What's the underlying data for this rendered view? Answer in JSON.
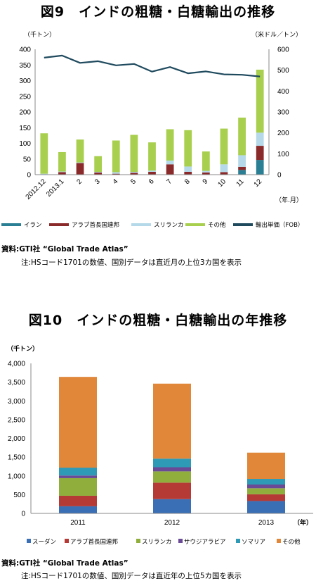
{
  "chart_data": [
    {
      "id": "fig9",
      "type": "bar",
      "stacked": true,
      "title": "図9　インドの粗糖・白糖輸出の推移",
      "left_unit": "（千トン）",
      "right_unit": "（米ドル／トン）",
      "x_unit": "（年.月）",
      "categories": [
        "2012.12",
        "2013.1",
        "2",
        "3",
        "4",
        "5",
        "6",
        "7",
        "8",
        "9",
        "10",
        "11",
        "12"
      ],
      "ylim": [
        0,
        400
      ],
      "yticks": [
        0,
        50,
        100,
        150,
        200,
        250,
        300,
        350,
        400
      ],
      "y2lim": [
        0,
        600
      ],
      "y2ticks": [
        0,
        100,
        200,
        300,
        400,
        500,
        600
      ],
      "series": [
        {
          "name": "イラン",
          "color": "#2a7f94",
          "values": [
            0,
            0,
            0,
            0,
            0,
            0,
            0,
            0,
            0,
            0,
            0,
            15,
            47
          ]
        },
        {
          "name": "アラブ首長国連邦",
          "color": "#8b2a2a",
          "values": [
            1,
            8,
            37,
            7,
            3,
            6,
            9,
            33,
            9,
            7,
            8,
            10,
            45
          ]
        },
        {
          "name": "スリランカ",
          "color": "#b5d9e8",
          "values": [
            2,
            2,
            2,
            2,
            5,
            3,
            4,
            12,
            17,
            5,
            25,
            37,
            42
          ]
        },
        {
          "name": "その他",
          "color": "#a8cf4e",
          "values": [
            129,
            62,
            73,
            50,
            101,
            118,
            90,
            100,
            116,
            62,
            114,
            120,
            201
          ]
        }
      ],
      "line": {
        "name": "輸出単価（FOB）",
        "color": "#1f4a5e",
        "values": [
          560,
          570,
          535,
          543,
          523,
          530,
          493,
          515,
          485,
          494,
          480,
          478,
          470
        ]
      },
      "source": "資料:GTI社 “Global Trade Atlas”",
      "note": "注:HSコード1701の数値、国別データは直近月の上位3カ国を表示"
    },
    {
      "id": "fig10",
      "type": "bar",
      "stacked": true,
      "title": "図10　インドの粗糖・白糖輸出の年推移",
      "left_unit": "（千トン）",
      "x_unit": "（年）",
      "categories": [
        "2011",
        "2012",
        "2013"
      ],
      "ylim": [
        0,
        4000
      ],
      "yticks": [
        "0",
        "500",
        "1,000",
        "1,500",
        "2,000",
        "2,500",
        "3,000",
        "3,500",
        "4,000"
      ],
      "series": [
        {
          "name": "スーダン",
          "color": "#3a6fb5",
          "values": [
            190,
            380,
            330
          ]
        },
        {
          "name": "アラブ首長国連邦",
          "color": "#b53a36",
          "values": [
            280,
            440,
            180
          ]
        },
        {
          "name": "スリランカ",
          "color": "#8fae3c",
          "values": [
            470,
            300,
            160
          ]
        },
        {
          "name": "サウジアラビア",
          "color": "#6a4a96",
          "values": [
            70,
            110,
            100
          ]
        },
        {
          "name": "ソマリア",
          "color": "#2f9ab5",
          "values": [
            210,
            230,
            150
          ]
        },
        {
          "name": "その他",
          "color": "#e0873a",
          "values": [
            2420,
            2000,
            700
          ]
        }
      ],
      "source": "資料:GTI社 “Global Trade Atlas”",
      "note": "注:HSコード1701の数値、国別データは直近年の上位5カ国を表示"
    }
  ]
}
